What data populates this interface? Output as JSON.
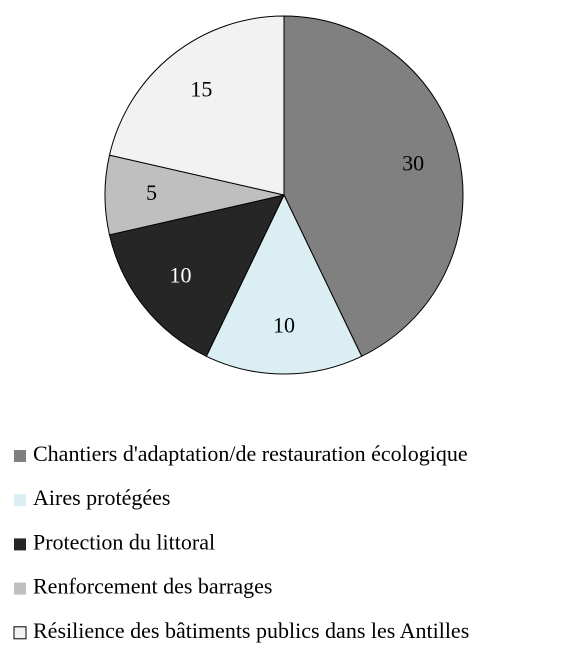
{
  "chart_data": {
    "type": "pie",
    "categories": [
      "Chantiers d'adaptation/de restauration écologique",
      "Aires protégées",
      "Protection du littoral",
      "Renforcement des barrages",
      "Résilience des bâtiments publics dans les Antilles"
    ],
    "values": [
      30,
      10,
      10,
      5,
      15
    ],
    "colors": [
      "#808080",
      "#daeef3",
      "#262626",
      "#bfbfbf",
      "#f2f2f2"
    ],
    "label_colors": [
      "#000000",
      "#000000",
      "#ffffff",
      "#000000",
      "#000000"
    ],
    "legend": "bottom"
  }
}
